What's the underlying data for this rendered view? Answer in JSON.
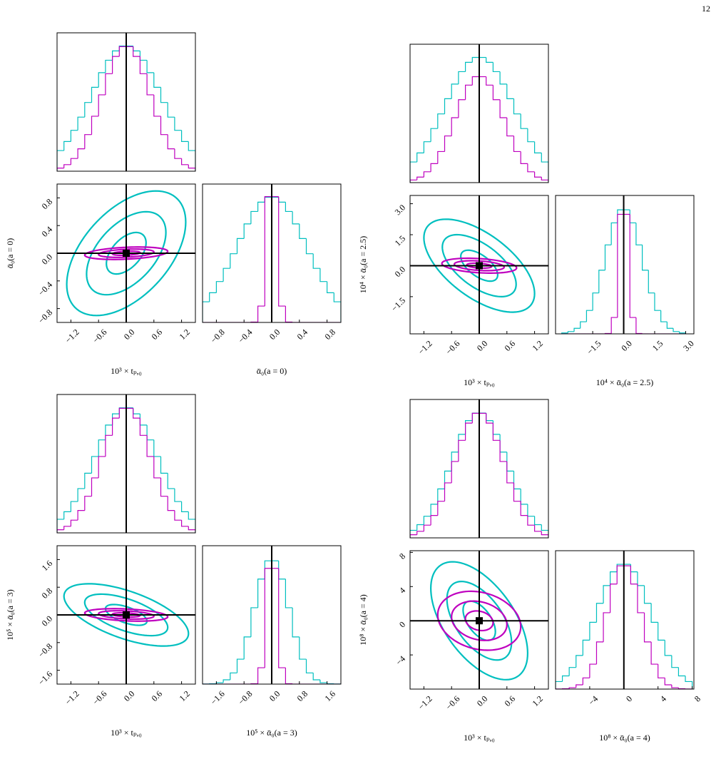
{
  "page_number": "12",
  "chart_data": [
    {
      "type": "corner",
      "x_label": "10³ × tₚ,₀",
      "y_label": "ᾱ₀(a = 0)",
      "truth": [
        0,
        0
      ],
      "xlim": [
        -1.5,
        1.5
      ],
      "xticks": [
        {
          "value": -1.2,
          "label": "−1.2"
        },
        {
          "value": -0.6,
          "label": "−0.6"
        },
        {
          "value": 0,
          "label": "0.0"
        },
        0.6,
        1.2
      ],
      "ylim": [
        -1,
        1
      ],
      "yticks": [
        {
          "value": -0.8,
          "label": "−0.8"
        },
        {
          "value": -0.4,
          "label": "−0.4"
        },
        {
          "value": 0,
          "label": "0.0"
        },
        0.4,
        0.8
      ],
      "hist_ylim": [
        0,
        1.1
      ],
      "hist_x": {
        "bins": [
          -1.5,
          -1.35,
          -1.2,
          -1.05,
          -0.9,
          -0.75,
          -0.6,
          -0.45,
          -0.3,
          -0.15,
          0,
          0.15,
          0.3,
          0.45,
          0.6,
          0.75,
          0.9,
          1.05,
          1.2,
          1.35,
          1.5
        ],
        "series": [
          {
            "color": "#00bfbf",
            "values": [
              0.164,
              0.236,
              0.325,
              0.43,
              0.546,
              0.667,
              0.783,
              0.882,
              0.956,
              0.995,
              0.995,
              0.956,
              0.882,
              0.783,
              0.667,
              0.546,
              0.43,
              0.325,
              0.236,
              0.164
            ]
          },
          {
            "color": "#bf00bf",
            "values": [
              0.025,
              0.052,
              0.101,
              0.178,
              0.291,
              0.437,
              0.607,
              0.775,
              0.912,
              0.99,
              0.99,
              0.912,
              0.775,
              0.607,
              0.437,
              0.291,
              0.178,
              0.101,
              0.052,
              0.025
            ]
          }
        ]
      },
      "hist_y": {
        "bins": [
          -1,
          -0.9,
          -0.8,
          -0.7,
          -0.6,
          -0.5,
          -0.4,
          -0.3,
          -0.2,
          -0.1,
          0,
          0.1,
          0.2,
          0.3,
          0.4,
          0.5,
          0.6,
          0.7,
          0.8,
          0.9,
          1
        ],
        "series": [
          {
            "color": "#00bfbf",
            "values": [
              0.164,
              0.236,
              0.325,
              0.43,
              0.546,
              0.667,
              0.783,
              0.882,
              0.956,
              0.995,
              0.995,
              0.956,
              0.882,
              0.783,
              0.667,
              0.546,
              0.43,
              0.325,
              0.236,
              0.164
            ]
          },
          {
            "color": "#bf00bf",
            "values": [
              0,
              0,
              0,
              0,
              0,
              0,
              0,
              0.003,
              0.13,
              1.0,
              1.0,
              0.13,
              0.003,
              0,
              0,
              0,
              0,
              0,
              0,
              0
            ]
          }
        ]
      },
      "contours": {
        "levels": [
          1,
          2,
          3
        ],
        "series": [
          {
            "color": "#00bfbf",
            "sx": 0.43,
            "sy": 0.3,
            "rho": 0.5
          },
          {
            "color": "#bf00bf",
            "sx": 0.3,
            "sy": 0.03,
            "rho": 0.3
          }
        ]
      }
    },
    {
      "type": "corner",
      "x_label": "10³ × tₚ,₀",
      "y_label": "10⁴ × ᾱ₀(a = 2.5)",
      "truth": [
        0,
        0
      ],
      "xlim": [
        -1.5,
        1.5
      ],
      "xticks": [
        {
          "value": -1.2,
          "label": "−1.2"
        },
        {
          "value": -0.6,
          "label": "−0.6"
        },
        {
          "value": 0,
          "label": "0.0"
        },
        0.6,
        1.2
      ],
      "ylim": [
        -3.3,
        3.4
      ],
      "yticks": [
        {
          "value": -1.5,
          "label": "−1.5"
        },
        {
          "value": 0,
          "label": "0.0"
        },
        1.5,
        {
          "value": 3,
          "label": "3.0"
        }
      ],
      "hist_ylim": [
        0,
        1.1
      ],
      "hist_x": {
        "bins": [
          -1.5,
          -1.35,
          -1.2,
          -1.05,
          -0.9,
          -0.75,
          -0.6,
          -0.45,
          -0.3,
          -0.15,
          0,
          0.15,
          0.3,
          0.45,
          0.6,
          0.75,
          0.9,
          1.05,
          1.2,
          1.35,
          1.5
        ],
        "series": [
          {
            "color": "#00bfbf",
            "values": [
              0.164,
              0.236,
              0.325,
              0.43,
              0.546,
              0.667,
              0.783,
              0.882,
              0.956,
              0.995,
              0.995,
              0.956,
              0.882,
              0.783,
              0.667,
              0.546,
              0.43,
              0.325,
              0.236,
              0.164
            ]
          },
          {
            "color": "#bf00bf",
            "values": [
              0.021,
              0.044,
              0.086,
              0.151,
              0.247,
              0.371,
              0.516,
              0.659,
              0.775,
              0.842,
              0.842,
              0.775,
              0.659,
              0.516,
              0.371,
              0.247,
              0.151,
              0.086,
              0.044,
              0.021
            ]
          }
        ]
      },
      "hist_y": {
        "bins": [
          -3,
          -2.7,
          -2.4,
          -2.1,
          -1.8,
          -1.5,
          -1.2,
          -0.9,
          -0.6,
          -0.3,
          0,
          0.3,
          0.6,
          0.9,
          1.2,
          1.5,
          1.8,
          2.1,
          2.4,
          2.7,
          3
        ],
        "series": [
          {
            "color": "#00bfbf",
            "values": [
              0.007,
              0.018,
              0.044,
              0.096,
              0.186,
              0.325,
              0.506,
              0.707,
              0.882,
              0.986,
              0.986,
              0.882,
              0.707,
              0.506,
              0.325,
              0.186,
              0.096,
              0.044,
              0.018,
              0.007
            ]
          },
          {
            "color": "#bf00bf",
            "values": [
              0,
              0,
              0,
              0,
              0,
              0,
              0,
              0.003,
              0.13,
              0.95,
              0.95,
              0.13,
              0.003,
              0,
              0,
              0,
              0,
              0,
              0,
              0
            ]
          }
        ]
      },
      "contours": {
        "levels": [
          1,
          2,
          3
        ],
        "series": [
          {
            "color": "#00bfbf",
            "sx": 0.4,
            "sy": 0.75,
            "rho": -0.6
          },
          {
            "color": "#bf00bf",
            "sx": 0.27,
            "sy": 0.12,
            "rho": -0.3
          }
        ]
      }
    },
    {
      "type": "corner",
      "x_label": "10³ × tₚ,₀",
      "y_label": "10⁵ × ᾱ₀(a = 3)",
      "truth": [
        0,
        0
      ],
      "xlim": [
        -1.5,
        1.5
      ],
      "xticks": [
        {
          "value": -1.2,
          "label": "−1.2"
        },
        {
          "value": -0.6,
          "label": "−0.6"
        },
        {
          "value": 0,
          "label": "0.0"
        },
        0.6,
        1.2
      ],
      "ylim": [
        -2,
        2
      ],
      "yticks": [
        {
          "value": -1.6,
          "label": "−1.6"
        },
        {
          "value": -0.8,
          "label": "−0.8"
        },
        {
          "value": 0,
          "label": "0.0"
        },
        0.8,
        1.6
      ],
      "hist_ylim": [
        0,
        1.1
      ],
      "hist_x": {
        "bins": [
          -1.5,
          -1.35,
          -1.2,
          -1.05,
          -0.9,
          -0.75,
          -0.6,
          -0.45,
          -0.3,
          -0.15,
          0,
          0.15,
          0.3,
          0.45,
          0.6,
          0.75,
          0.9,
          1.05,
          1.2,
          1.35,
          1.5
        ],
        "series": [
          {
            "color": "#00bfbf",
            "values": [
              0.108,
              0.168,
              0.249,
              0.352,
              0.474,
              0.607,
              0.739,
              0.857,
              0.946,
              0.994,
              0.994,
              0.946,
              0.857,
              0.739,
              0.607,
              0.474,
              0.352,
              0.249,
              0.168,
              0.108
            ]
          },
          {
            "color": "#bf00bf",
            "values": [
              0.025,
              0.052,
              0.101,
              0.178,
              0.291,
              0.437,
              0.607,
              0.775,
              0.912,
              0.99,
              0.99,
              0.912,
              0.775,
              0.607,
              0.437,
              0.291,
              0.178,
              0.101,
              0.052,
              0.025
            ]
          }
        ]
      },
      "hist_y": {
        "bins": [
          -2,
          -1.8,
          -1.6,
          -1.4,
          -1.2,
          -1,
          -0.8,
          -0.6,
          -0.4,
          -0.2,
          0,
          0.2,
          0.4,
          0.6,
          0.8,
          1,
          1.2,
          1.4,
          1.6,
          1.8,
          2
        ],
        "series": [
          {
            "color": "#00bfbf",
            "values": [
              0.001,
              0.003,
              0.011,
              0.034,
              0.089,
              0.198,
              0.375,
              0.607,
              0.835,
              0.98,
              0.98,
              0.835,
              0.607,
              0.375,
              0.198,
              0.089,
              0.034,
              0.011,
              0.003,
              0.001
            ]
          },
          {
            "color": "#bf00bf",
            "values": [
              0,
              0,
              0,
              0,
              0,
              0,
              0,
              0.003,
              0.13,
              0.92,
              0.92,
              0.13,
              0.003,
              0,
              0,
              0,
              0,
              0,
              0,
              0
            ]
          }
        ]
      },
      "contours": {
        "levels": [
          1,
          2,
          3
        ],
        "series": [
          {
            "color": "#00bfbf",
            "sx": 0.45,
            "sy": 0.3,
            "rho": -0.6
          },
          {
            "color": "#bf00bf",
            "sx": 0.3,
            "sy": 0.06,
            "rho": -0.3
          }
        ]
      }
    },
    {
      "type": "corner",
      "x_label": "10³ × tₚ,₀",
      "y_label": "10⁸ × ᾱ₀(a = 4)",
      "truth": [
        0,
        0
      ],
      "xlim": [
        -1.5,
        1.5
      ],
      "xticks": [
        {
          "value": -1.2,
          "label": "−1.2"
        },
        {
          "value": -0.6,
          "label": "−0.6"
        },
        {
          "value": 0,
          "label": "0.0"
        },
        0.6,
        1.2
      ],
      "ylim": [
        -8,
        8.2
      ],
      "yticks": [
        {
          "value": -4,
          "label": "−4"
        },
        0,
        4,
        8
      ],
      "hist_ylim": [
        0,
        1.1
      ],
      "hist_x": {
        "bins": [
          -1.5,
          -1.35,
          -1.2,
          -1.05,
          -0.9,
          -0.75,
          -0.6,
          -0.45,
          -0.3,
          -0.15,
          0,
          0.15,
          0.3,
          0.45,
          0.6,
          0.75,
          0.9,
          1.05,
          1.2,
          1.35,
          1.5
        ],
        "series": [
          {
            "color": "#00bfbf",
            "values": [
              0.06,
              0.105,
              0.172,
              0.267,
              0.389,
              0.531,
              0.682,
              0.823,
              0.932,
              0.992,
              0.992,
              0.932,
              0.823,
              0.682,
              0.531,
              0.389,
              0.267,
              0.172,
              0.105,
              0.06
            ]
          },
          {
            "color": "#bf00bf",
            "values": [
              0.025,
              0.052,
              0.101,
              0.178,
              0.291,
              0.437,
              0.607,
              0.775,
              0.912,
              0.99,
              0.99,
              0.912,
              0.775,
              0.607,
              0.437,
              0.291,
              0.178,
              0.101,
              0.052,
              0.025
            ]
          }
        ]
      },
      "hist_y": {
        "bins": [
          -8,
          -7.2,
          -6.4,
          -5.6,
          -4.8,
          -4,
          -3.2,
          -2.4,
          -1.6,
          -0.8,
          0,
          0.8,
          1.6,
          2.4,
          3.2,
          4,
          4.8,
          5.6,
          6.4,
          7.2,
          8
        ],
        "series": [
          {
            "color": "#00bfbf",
            "values": [
              0.06,
              0.105,
              0.172,
              0.267,
              0.389,
              0.531,
              0.682,
              0.823,
              0.932,
              0.992,
              0.992,
              0.932,
              0.823,
              0.682,
              0.531,
              0.389,
              0.267,
              0.172,
              0.105,
              0.06
            ]
          },
          {
            "color": "#bf00bf",
            "values": [
              0.001,
              0.003,
              0.011,
              0.034,
              0.089,
              0.198,
              0.375,
              0.607,
              0.835,
              0.98,
              0.98,
              0.835,
              0.607,
              0.375,
              0.198,
              0.089,
              0.034,
              0.011,
              0.003,
              0.001
            ]
          }
        ]
      },
      "contours": {
        "levels": [
          1,
          2,
          3
        ],
        "series": [
          {
            "color": "#00bfbf",
            "sx": 0.35,
            "sy": 2.3,
            "rho": -0.55
          },
          {
            "color": "#bf00bf",
            "sx": 0.3,
            "sy": 1.15,
            "rho": -0.2
          }
        ]
      }
    }
  ]
}
